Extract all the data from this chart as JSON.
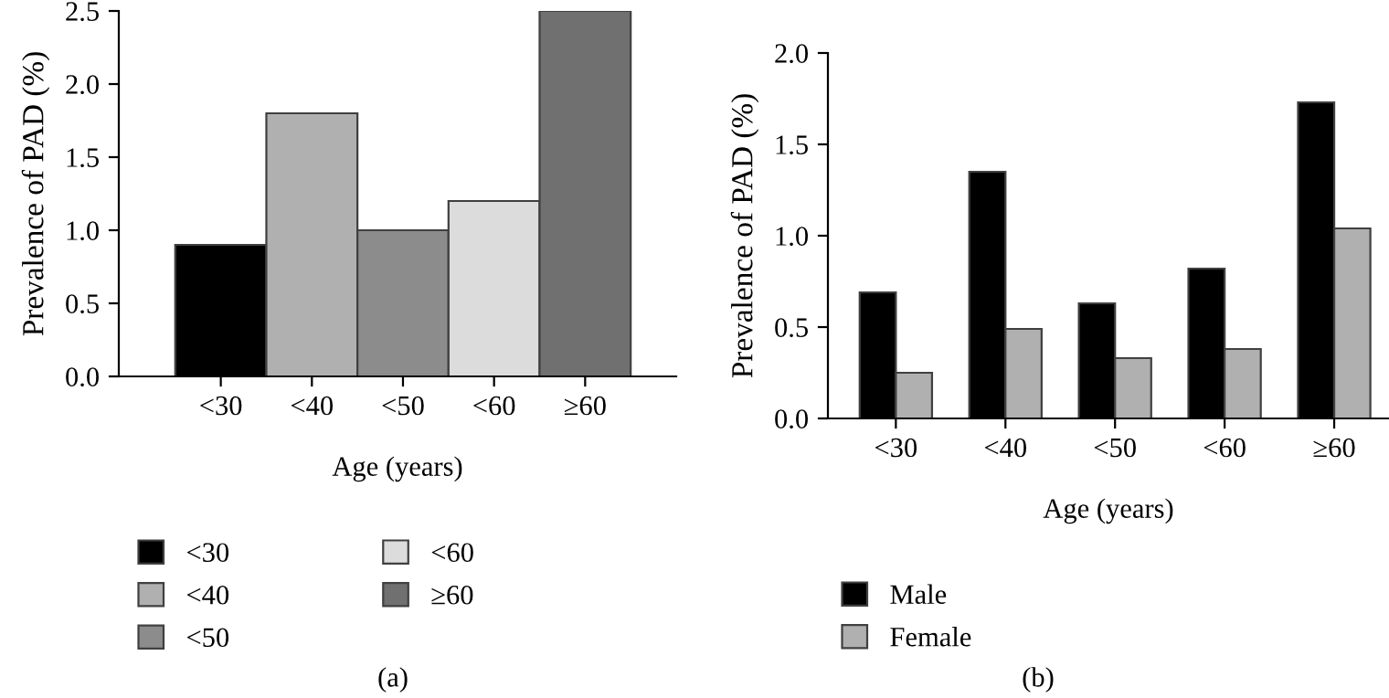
{
  "chart_data": [
    {
      "type": "bar",
      "categories": [
        "<30",
        "<40",
        "<50",
        "<60",
        "≥60"
      ],
      "series": [
        {
          "name": "<30",
          "color": "#000000",
          "values": [
            0.9,
            null,
            null,
            null,
            null
          ]
        },
        {
          "name": "<40",
          "color": "#b0b0b0",
          "values": [
            null,
            1.8,
            null,
            null,
            null
          ]
        },
        {
          "name": "<50",
          "color": "#8c8c8c",
          "values": [
            null,
            null,
            1.0,
            null,
            null
          ]
        },
        {
          "name": "<60",
          "color": "#dcdcdc",
          "values": [
            null,
            null,
            null,
            1.2,
            null
          ]
        },
        {
          "name": "≥60",
          "color": "#707070",
          "values": [
            null,
            null,
            null,
            null,
            2.5
          ]
        }
      ],
      "xlabel": "Age (years)",
      "ylabel": "Prevalence of PAD (%)",
      "ylim": [
        0,
        2.5
      ],
      "yticks": [
        {
          "value": 0,
          "label": "0.0"
        },
        0.5,
        {
          "value": 1,
          "label": "1.0"
        },
        1.5,
        {
          "value": 2,
          "label": "2.0"
        },
        2.5
      ],
      "legend": "bottom",
      "grid": false,
      "annotations": [
        "(a)"
      ]
    },
    {
      "type": "bar",
      "categories": [
        "<30",
        "<40",
        "<50",
        "<60",
        "≥60"
      ],
      "series": [
        {
          "name": "Male",
          "color": "#000000",
          "values": [
            0.69,
            1.35,
            0.63,
            0.82,
            1.73
          ]
        },
        {
          "name": "Female",
          "color": "#b0b0b0",
          "values": [
            0.25,
            0.49,
            0.33,
            0.38,
            1.04
          ]
        }
      ],
      "xlabel": "Age (years)",
      "ylabel": "Prevalence of PAD (%)",
      "ylim": [
        0,
        2
      ],
      "yticks": [
        {
          "value": 0,
          "label": "0.0"
        },
        0.5,
        {
          "value": 1,
          "label": "1.0"
        },
        1.5,
        {
          "value": 2,
          "label": "2.0"
        }
      ],
      "legend": "bottom",
      "grid": false,
      "annotations": [
        "(b)"
      ]
    }
  ]
}
